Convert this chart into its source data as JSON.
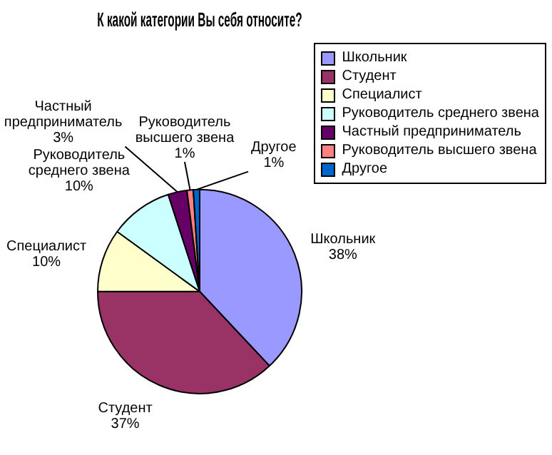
{
  "chart_data": {
    "type": "pie",
    "title": "К какой категории Вы себя относите?",
    "categories": [
      "Школьник",
      "Студент",
      "Специалист",
      "Руководитель среднего звена",
      "Частный предприниматель",
      "Руководитель высшего звена",
      "Другое"
    ],
    "values": [
      38,
      37,
      10,
      10,
      3,
      1,
      1
    ],
    "colors": [
      "#9999ff",
      "#993366",
      "#ffffcc",
      "#ccffff",
      "#660066",
      "#ff8080",
      "#0066cc"
    ],
    "value_labels": [
      "38%",
      "37%",
      "10%",
      "10%",
      "3%",
      "1%",
      "1%"
    ],
    "legend": "top right"
  }
}
